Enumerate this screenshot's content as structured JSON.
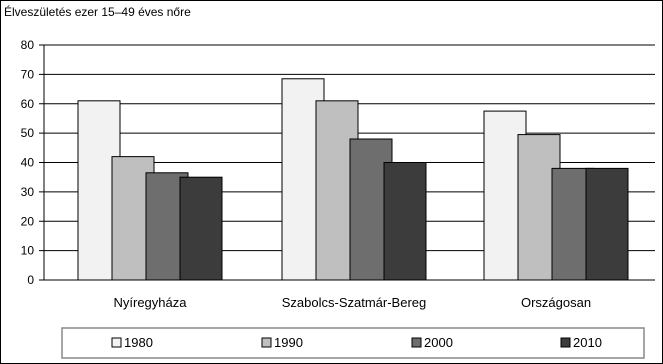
{
  "chart_data": {
    "type": "bar",
    "title": "Élveszületés ezer 15–49 éves nőre",
    "categories": [
      "Nyíregyháza",
      "Szabolcs-Szatmár-Bereg",
      "Országosan"
    ],
    "series": [
      {
        "name": "1980",
        "values": [
          61,
          68.5,
          57.5
        ]
      },
      {
        "name": "1990",
        "values": [
          42,
          61,
          49.5
        ]
      },
      {
        "name": "2000",
        "values": [
          36.5,
          48,
          38
        ]
      },
      {
        "name": "2010",
        "values": [
          35,
          40,
          38
        ]
      }
    ],
    "ylim": [
      0,
      80
    ],
    "yticks": [
      0,
      10,
      20,
      30,
      40,
      50,
      60,
      70,
      80
    ],
    "grid": true,
    "legend": "bottom",
    "colors": {
      "1980": "#f2f2f2",
      "1990": "#bfbfbf",
      "2000": "#6e6e6e",
      "2010": "#3c3c3c"
    }
  }
}
